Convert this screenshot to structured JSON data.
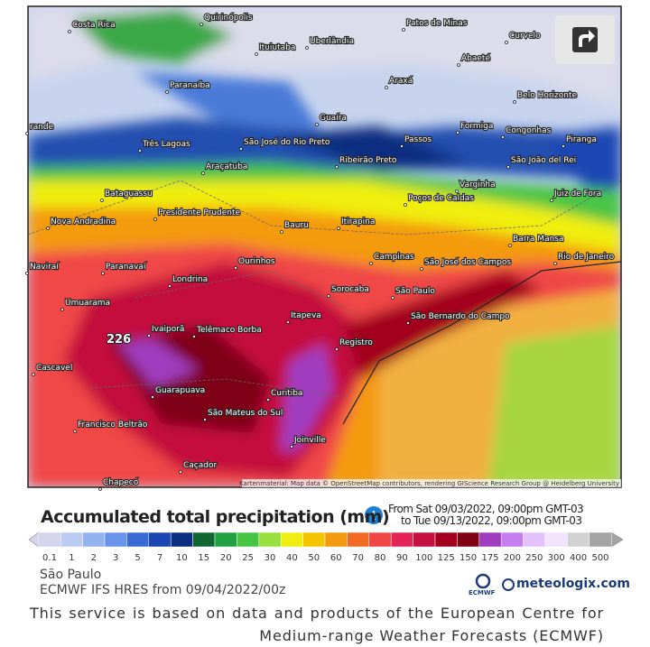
{
  "map": {
    "cities": [
      "Costa Rica",
      "Quirinópolis",
      "Patos de Minas",
      "Curvelo",
      "Ituiutaba",
      "Uberlândia",
      "Abaeté",
      "Paranaíba",
      "Araxá",
      "Belo Horizonte",
      "Guaíra",
      "São José do Rio Preto",
      "Formiga",
      "Congonhas",
      "Passos",
      "Três Lagoas",
      "Ribeirão Preto",
      "Piranga",
      "São João del Rei",
      "Araçatuba",
      "Varginha",
      "Poços de Caldas",
      "Juiz de Fora",
      "Bataguassu",
      "Presidente Prudente",
      "Nova Andradina",
      "Bauru",
      "Itirapina",
      "Barra Mansa",
      "Campinas",
      "São José dos Campos",
      "Rio de Janeiro",
      "Naviraí",
      "Paranavaí",
      "Ourinhos",
      "Londrina",
      "Sorocaba",
      "São Paulo",
      "Umuarama",
      "Itapeva",
      "São Bernardo do Campo",
      "Telêmaco Borba",
      "Ivaiporã",
      "Registro",
      "Cascavel",
      "Guarapuava",
      "Curitiba",
      "São Mateus do Sul",
      "Francisco Beltrão",
      "Joinville",
      "Caçador",
      "Chapecó",
      "rande"
    ],
    "peak_label": "226",
    "attribution": "Kartenmaterial: Map data © OpenStreetMap contributors, rendering GIScience Research Group @ Heidelberg University"
  },
  "legend": {
    "title": "Accumulated total precipitation (mm)",
    "from": "From Sat 09/03/2022, 09:00pm GMT-03",
    "to": "to Tue 09/13/2022, 09:00pm GMT-03",
    "scale": [
      {
        "label": "0.1",
        "color": "#d4d4ea"
      },
      {
        "label": "1",
        "color": "#bccbf2"
      },
      {
        "label": "2",
        "color": "#94b2f0"
      },
      {
        "label": "3",
        "color": "#6a94ea"
      },
      {
        "label": "5",
        "color": "#3a6ad6"
      },
      {
        "label": "7",
        "color": "#1a46b4"
      },
      {
        "label": "10",
        "color": "#0c2e80"
      },
      {
        "label": "15",
        "color": "#126632"
      },
      {
        "label": "20",
        "color": "#22a044"
      },
      {
        "label": "25",
        "color": "#48c444"
      },
      {
        "label": "30",
        "color": "#98e040"
      },
      {
        "label": "40",
        "color": "#f0ee10"
      },
      {
        "label": "50",
        "color": "#f4c400"
      },
      {
        "label": "60",
        "color": "#f49a10"
      },
      {
        "label": "70",
        "color": "#f26a24"
      },
      {
        "label": "80",
        "color": "#f04646"
      },
      {
        "label": "90",
        "color": "#e42456"
      },
      {
        "label": "100",
        "color": "#c4103e"
      },
      {
        "label": "125",
        "color": "#a2001e"
      },
      {
        "label": "150",
        "color": "#7e0012"
      },
      {
        "label": "175",
        "color": "#a03cc0"
      },
      {
        "label": "200",
        "color": "#c47ef0"
      },
      {
        "label": "250",
        "color": "#e2c2ff"
      },
      {
        "label": "300",
        "color": "#f2e4ff"
      },
      {
        "label": "400",
        "color": "#d2d2d2"
      },
      {
        "label": "500",
        "color": "#a4a4a4"
      }
    ]
  },
  "footer": {
    "location": "São Paulo",
    "model": "ECMWF IFS HRES from 09/04/2022/00z",
    "ecmwf": "ECMWF",
    "brand": "meteologix.com",
    "notice": "This service is based on data and products of the European Centre for Medium-range Weather Forecasts (ECMWF)"
  }
}
